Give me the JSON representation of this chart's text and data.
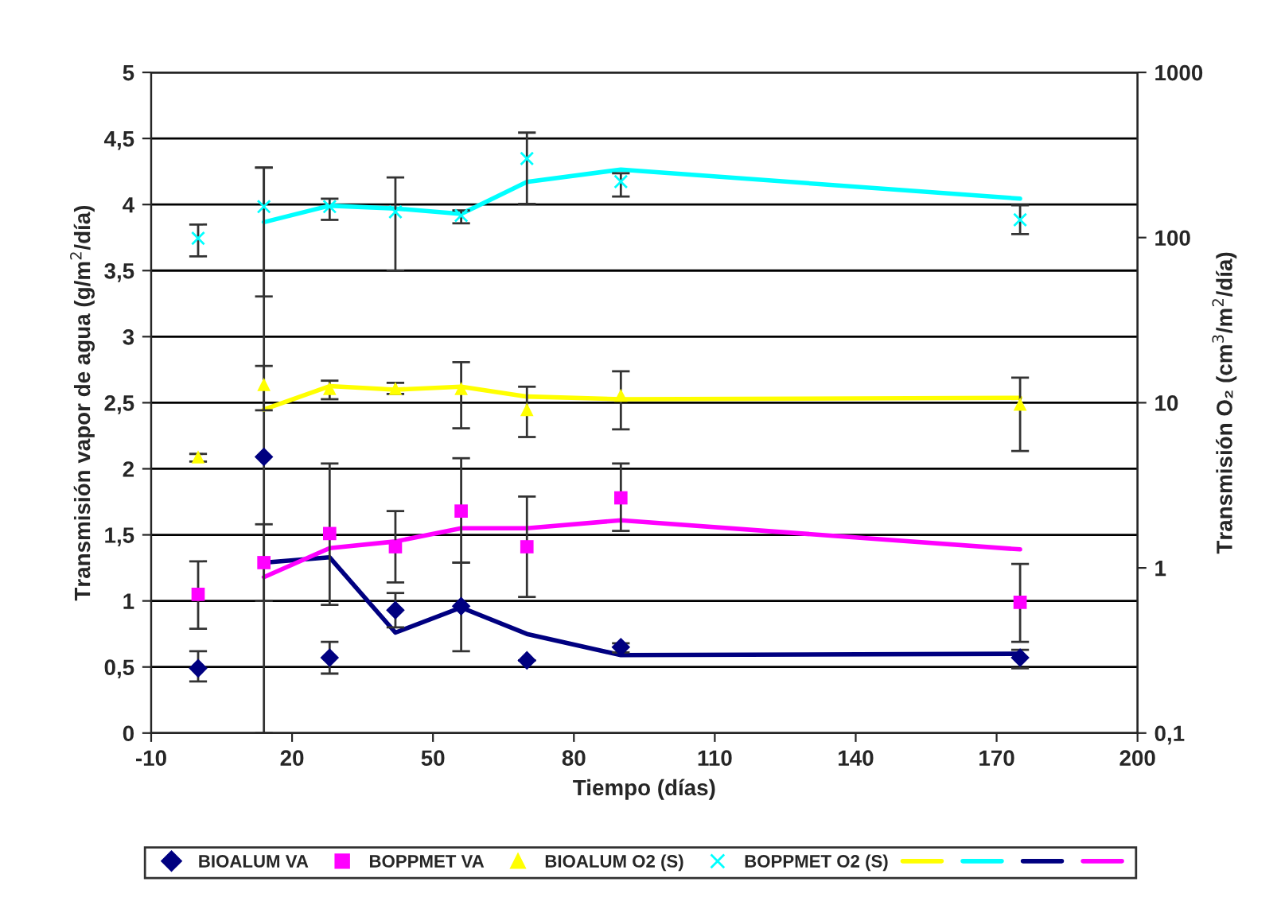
{
  "chart_data": {
    "type": "scatter",
    "xlabel": "Tiempo (días)",
    "ylabel": "Transmisión vapor de agua (g/m$^{2}$/día)",
    "y2label": "Transmisión O₂ (cm$^{3}$/m$^{2}$/día)",
    "xlim": [
      -10,
      200
    ],
    "xticks": [
      -10,
      20,
      50,
      80,
      110,
      140,
      170,
      200
    ],
    "ylim": [
      0,
      5
    ],
    "yticks": [
      0,
      {
        "value": 0.5,
        "label": "0,5"
      },
      1,
      {
        "value": 1.5,
        "label": "1,5"
      },
      2,
      {
        "value": 2.5,
        "label": "2,5"
      },
      3,
      {
        "value": 3.5,
        "label": "3,5"
      },
      4,
      {
        "value": 4.5,
        "label": "4,5"
      },
      5
    ],
    "log": "y2",
    "y2lim": [
      0.1,
      1000
    ],
    "y2ticks": [
      {
        "value": 0.1,
        "label": "0,1"
      },
      1,
      10,
      100,
      1000
    ],
    "grid": "y",
    "legend": "bottom",
    "series": [
      {
        "name": "BIOALUM VA",
        "marker": "diamond",
        "color": "#000080",
        "x": [
          0,
          14,
          28,
          42,
          56,
          70,
          90,
          175
        ],
        "values": [
          0.49,
          2.09,
          0.57,
          0.93,
          0.96,
          0.55,
          0.65,
          0.57
        ],
        "errors": [
          [
            0.39,
            0.62
          ],
          [
            0,
            4.28
          ],
          [
            0.45,
            0.69
          ],
          [
            0.8,
            1.06
          ],
          [
            0.62,
            1.29
          ],
          null,
          [
            0.61,
            0.68
          ],
          [
            0.49,
            0.63
          ]
        ]
      },
      {
        "name": "BOPPMET VA",
        "marker": "square",
        "color": "#ff00ff",
        "x": [
          0,
          14,
          28,
          42,
          56,
          70,
          90,
          175
        ],
        "values": [
          1.05,
          1.29,
          1.51,
          1.41,
          1.68,
          1.41,
          1.78,
          0.99
        ],
        "errors": [
          [
            0.79,
            1.3
          ],
          [
            1.0,
            1.58
          ],
          [
            0.97,
            2.04
          ],
          [
            1.14,
            1.68
          ],
          [
            1.29,
            2.08
          ],
          [
            1.03,
            1.79
          ],
          [
            1.53,
            2.04
          ],
          [
            0.69,
            1.28
          ]
        ]
      },
      {
        "name": "BIOALUM O2 (S)",
        "axis": "y2",
        "marker": "triangle",
        "color": "#ffff00",
        "x": [
          0,
          14,
          28,
          42,
          56,
          70,
          90,
          175
        ],
        "values": [
          4.7,
          12.9,
          12.2,
          12.2,
          12.2,
          9.1,
          11.1,
          9.8
        ],
        "errors": [
          [
            4.4,
            4.9
          ],
          [
            9.0,
            16.7
          ],
          [
            10.5,
            13.6
          ],
          [
            11.3,
            13.2
          ],
          [
            7.0,
            17.6
          ],
          [
            6.2,
            12.5
          ],
          [
            6.9,
            15.5
          ],
          [
            5.1,
            14.2
          ]
        ]
      },
      {
        "name": "BOPPMET O2 (S)",
        "axis": "y2",
        "marker": "cross",
        "color": "#00ffff",
        "x": [
          0,
          14,
          28,
          42,
          56,
          70,
          90,
          175
        ],
        "values": [
          99,
          154,
          154,
          143,
          136,
          301,
          218,
          128
        ],
        "errors": [
          [
            77,
            120
          ],
          [
            44,
            265
          ],
          [
            128,
            172
          ],
          [
            63,
            231
          ],
          [
            122,
            146
          ],
          [
            160,
            432
          ],
          [
            177,
            245
          ],
          [
            105,
            157
          ]
        ]
      },
      {
        "type": "line",
        "axis": "y2",
        "color": "#ffff00",
        "x": [
          14,
          28,
          42,
          56,
          70,
          90,
          175
        ],
        "values": [
          9.1,
          12.6,
          12.0,
          12.5,
          10.9,
          10.5,
          10.7
        ]
      },
      {
        "type": "line",
        "axis": "y2",
        "color": "#00ffff",
        "x": [
          14,
          28,
          42,
          56,
          70,
          90,
          175
        ],
        "values": [
          124,
          156,
          150,
          139,
          217,
          258,
          172
        ]
      },
      {
        "type": "line",
        "color": "#000080",
        "x": [
          14,
          28,
          42,
          56,
          70,
          90,
          175
        ],
        "values": [
          1.29,
          1.33,
          0.76,
          0.95,
          0.75,
          0.59,
          0.6
        ]
      },
      {
        "type": "line",
        "color": "#ff00ff",
        "x": [
          14,
          28,
          42,
          56,
          70,
          90,
          175
        ],
        "values": [
          1.18,
          1.4,
          1.45,
          1.55,
          1.55,
          1.61,
          1.39
        ]
      }
    ]
  }
}
